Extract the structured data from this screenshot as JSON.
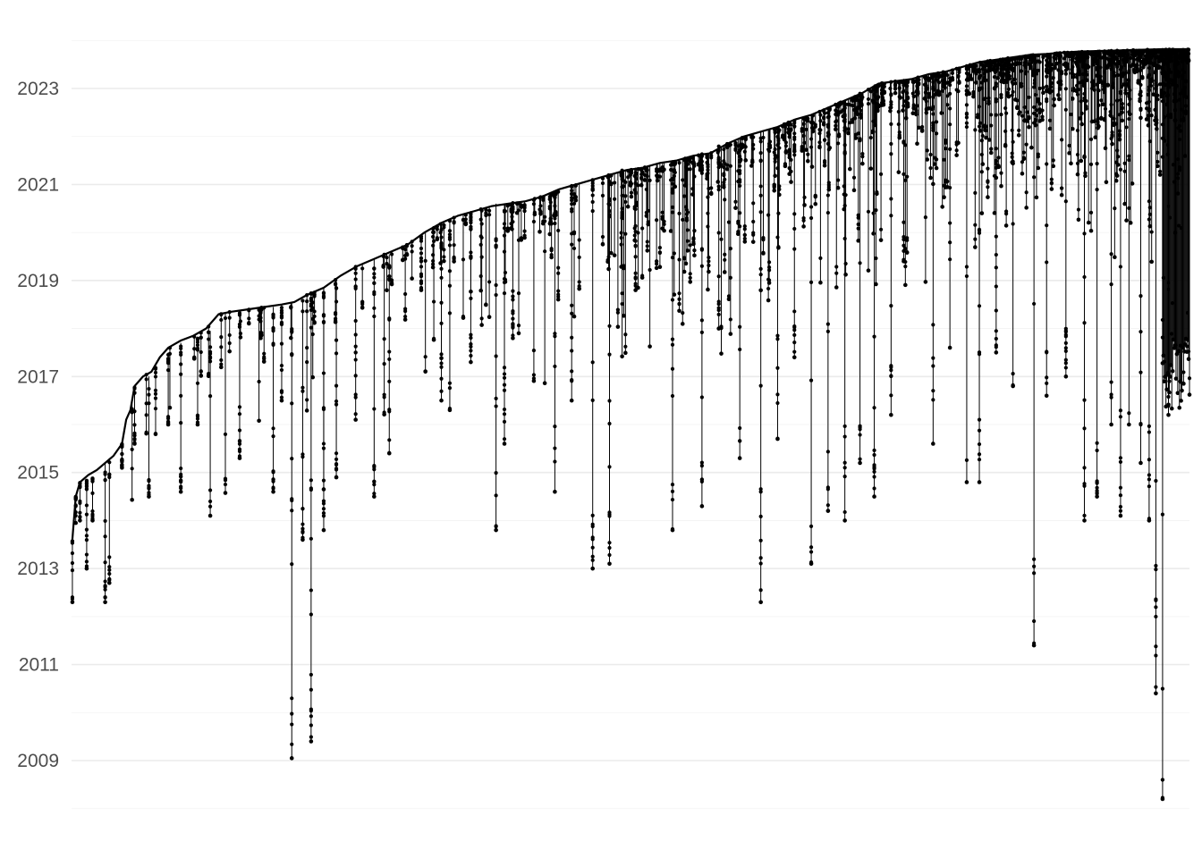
{
  "chart_data": {
    "type": "scatter",
    "title": "",
    "xlabel": "",
    "ylabel": "",
    "ylim": [
      2008.0,
      2024.0
    ],
    "y_ticks": [
      "2009",
      "2011",
      "2013",
      "2015",
      "2017",
      "2019",
      "2021",
      "2023"
    ],
    "x_axis_labels_shown": false,
    "grid": true,
    "legend": "none",
    "description_of_marks": "one vertical stem per x index from its top date down to its earliest date, with dots for individual dates along each stem",
    "series": [
      {
        "top_values": [
          [
            1,
            2013.6
          ],
          [
            5,
            2014.5
          ],
          [
            10,
            2014.8
          ],
          [
            20,
            2014.95
          ],
          [
            30,
            2015.05
          ],
          [
            40,
            2015.2
          ],
          [
            50,
            2015.35
          ],
          [
            60,
            2015.6
          ],
          [
            65,
            2016.1
          ],
          [
            70,
            2016.3
          ],
          [
            75,
            2016.8
          ],
          [
            85,
            2017.0
          ],
          [
            95,
            2017.1
          ],
          [
            105,
            2017.4
          ],
          [
            115,
            2017.6
          ],
          [
            130,
            2017.75
          ],
          [
            145,
            2017.85
          ],
          [
            160,
            2018.0
          ],
          [
            175,
            2018.3
          ],
          [
            190,
            2018.35
          ],
          [
            210,
            2018.4
          ],
          [
            230,
            2018.45
          ],
          [
            250,
            2018.5
          ],
          [
            265,
            2018.55
          ],
          [
            280,
            2018.7
          ],
          [
            300,
            2018.85
          ],
          [
            320,
            2019.1
          ],
          [
            340,
            2019.3
          ],
          [
            360,
            2019.45
          ],
          [
            380,
            2019.6
          ],
          [
            400,
            2019.75
          ],
          [
            420,
            2020.0
          ],
          [
            440,
            2020.2
          ],
          [
            460,
            2020.35
          ],
          [
            480,
            2020.45
          ],
          [
            500,
            2020.55
          ],
          [
            520,
            2020.6
          ],
          [
            540,
            2020.65
          ],
          [
            560,
            2020.75
          ],
          [
            580,
            2020.9
          ],
          [
            600,
            2021.0
          ],
          [
            620,
            2021.1
          ],
          [
            640,
            2021.2
          ],
          [
            660,
            2021.3
          ],
          [
            680,
            2021.35
          ],
          [
            700,
            2021.45
          ],
          [
            720,
            2021.5
          ],
          [
            740,
            2021.6
          ],
          [
            760,
            2021.65
          ],
          [
            780,
            2021.85
          ],
          [
            800,
            2022.0
          ],
          [
            820,
            2022.1
          ],
          [
            840,
            2022.2
          ],
          [
            860,
            2022.35
          ],
          [
            880,
            2022.45
          ],
          [
            900,
            2022.6
          ],
          [
            920,
            2022.75
          ],
          [
            940,
            2022.9
          ],
          [
            960,
            2023.1
          ],
          [
            980,
            2023.15
          ],
          [
            1000,
            2023.2
          ],
          [
            1020,
            2023.3
          ],
          [
            1040,
            2023.35
          ],
          [
            1060,
            2023.45
          ],
          [
            1080,
            2023.55
          ],
          [
            1100,
            2023.6
          ],
          [
            1120,
            2023.65
          ],
          [
            1140,
            2023.7
          ],
          [
            1160,
            2023.72
          ],
          [
            1180,
            2023.75
          ],
          [
            1200,
            2023.77
          ],
          [
            1220,
            2023.78
          ],
          [
            1240,
            2023.79
          ],
          [
            1260,
            2023.8
          ],
          [
            1280,
            2023.81
          ],
          [
            1300,
            2023.82
          ],
          [
            1320,
            2023.82
          ],
          [
            1330,
            2023.82
          ]
        ],
        "stems": [
          [
            1,
            2013.6,
            2012.3
          ],
          [
            5,
            2014.5,
            2013.95
          ],
          [
            10,
            2014.8,
            2014.0
          ],
          [
            18,
            2014.85,
            2013.0
          ],
          [
            25,
            2014.9,
            2014.0
          ],
          [
            40,
            2015.2,
            2012.3
          ],
          [
            45,
            2015.3,
            2012.7
          ],
          [
            60,
            2015.6,
            2015.1
          ],
          [
            75,
            2016.8,
            2015.6
          ],
          [
            92,
            2017.0,
            2014.5
          ],
          [
            100,
            2017.2,
            2015.8
          ],
          [
            115,
            2017.5,
            2016.0
          ],
          [
            130,
            2017.7,
            2014.6
          ],
          [
            150,
            2017.8,
            2016.0
          ],
          [
            165,
            2017.95,
            2014.1
          ],
          [
            200,
            2018.35,
            2015.3
          ],
          [
            225,
            2018.4,
            2017.8
          ],
          [
            240,
            2018.45,
            2014.6
          ],
          [
            250,
            2018.5,
            2016.5
          ],
          [
            262,
            2018.55,
            2009.05
          ],
          [
            275,
            2018.6,
            2013.6
          ],
          [
            285,
            2018.75,
            2009.4
          ],
          [
            300,
            2018.85,
            2013.8
          ],
          [
            315,
            2019.05,
            2014.9
          ],
          [
            338,
            2019.3,
            2016.1
          ],
          [
            360,
            2019.45,
            2014.5
          ],
          [
            378,
            2019.55,
            2015.4
          ],
          [
            416,
            2019.95,
            2018.8
          ],
          [
            440,
            2020.15,
            2016.5
          ],
          [
            450,
            2020.25,
            2016.3
          ],
          [
            475,
            2020.45,
            2017.3
          ],
          [
            505,
            2020.6,
            2013.8
          ],
          [
            515,
            2020.6,
            2015.6
          ],
          [
            525,
            2020.65,
            2017.8
          ],
          [
            575,
            2020.85,
            2014.6
          ],
          [
            595,
            2021.0,
            2016.5
          ],
          [
            620,
            2021.1,
            2013.0
          ],
          [
            640,
            2021.2,
            2013.1
          ],
          [
            655,
            2021.3,
            2020.3
          ],
          [
            671,
            2021.35,
            2018.8
          ],
          [
            715,
            2021.5,
            2013.8
          ],
          [
            750,
            2021.65,
            2014.3
          ],
          [
            770,
            2021.8,
            2018.0
          ],
          [
            795,
            2021.95,
            2015.3
          ],
          [
            820,
            2022.1,
            2012.3
          ],
          [
            840,
            2022.2,
            2015.7
          ],
          [
            860,
            2022.35,
            2017.4
          ],
          [
            880,
            2022.45,
            2013.1
          ],
          [
            900,
            2022.6,
            2014.2
          ],
          [
            920,
            2022.75,
            2014.0
          ],
          [
            938,
            2022.9,
            2015.2
          ],
          [
            955,
            2023.05,
            2014.5
          ],
          [
            975,
            2023.15,
            2016.2
          ],
          [
            990,
            2023.2,
            2019.4
          ],
          [
            1025,
            2023.3,
            2015.6
          ],
          [
            1045,
            2023.35,
            2017.6
          ],
          [
            1065,
            2023.45,
            2014.8
          ],
          [
            1080,
            2023.55,
            2014.8
          ],
          [
            1100,
            2023.6,
            2017.5
          ],
          [
            1120,
            2023.65,
            2016.8
          ],
          [
            1145,
            2023.7,
            2011.4
          ],
          [
            1160,
            2023.72,
            2016.6
          ],
          [
            1183,
            2023.75,
            2017.0
          ],
          [
            1205,
            2023.77,
            2014.0
          ],
          [
            1220,
            2023.78,
            2014.5
          ],
          [
            1237,
            2023.79,
            2016.0
          ],
          [
            1248,
            2023.8,
            2014.1
          ],
          [
            1258,
            2023.8,
            2016.0
          ],
          [
            1272,
            2023.81,
            2015.2
          ],
          [
            1282,
            2023.82,
            2014.0
          ],
          [
            1290,
            2023.82,
            2010.4
          ],
          [
            1298,
            2023.82,
            2008.2
          ],
          [
            1305,
            2023.82,
            2016.2
          ]
        ]
      }
    ]
  }
}
